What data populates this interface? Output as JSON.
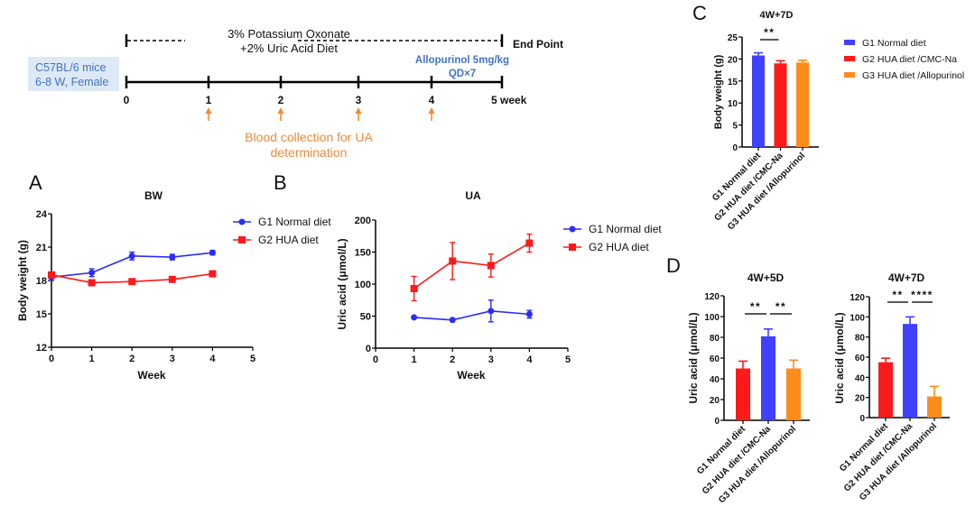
{
  "timeline": {
    "diet_label_line1": "3% Potassium Oxonate",
    "diet_label_line2": "+2% Uric Acid Diet",
    "end_point_label": "End Point",
    "mice_line1": "C57BL/6 mice",
    "mice_line2": "6-8 W, Female",
    "drug_line1": "Allopurinol 5mg/kg",
    "drug_line2": "QD×7",
    "ticks": [
      "0",
      "1",
      "2",
      "3",
      "4",
      "5 week"
    ],
    "blood_weeks": [
      1,
      2,
      3,
      4
    ],
    "blood_line1": "Blood collection for UA",
    "blood_line2": "determination",
    "colors": {
      "box_bg": "#dde9f6",
      "box_text": "#4472c4",
      "drug_text": "#4472c4",
      "arrow": "#f08a3c"
    }
  },
  "chart_data": [
    {
      "id": "A",
      "panel_label": "A",
      "type": "line",
      "title": "BW",
      "xlabel": "Week",
      "ylabel": "Body weight (g)",
      "xlim": [
        0,
        5
      ],
      "ylim": [
        12,
        24
      ],
      "xticks": [
        "0",
        "1",
        "2",
        "3",
        "4",
        "5"
      ],
      "yticks": [
        "12",
        "15",
        "18",
        "21",
        "24"
      ],
      "grid": false,
      "legend": "right",
      "x": [
        0,
        1,
        2,
        3,
        4
      ],
      "series": [
        {
          "name": "G1 Normal diet",
          "color": "#2b2bff",
          "marker": "circle",
          "values": [
            18.3,
            18.7,
            20.2,
            20.1,
            20.5
          ],
          "errors": [
            0.3,
            0.35,
            0.35,
            0.25,
            0.2
          ]
        },
        {
          "name": "G2 HUA diet",
          "color": "#ff1a1a",
          "marker": "square",
          "values": [
            18.5,
            17.8,
            17.9,
            18.1,
            18.6
          ],
          "errors": [
            0.15,
            0.2,
            0.2,
            0.2,
            0.25
          ]
        }
      ]
    },
    {
      "id": "B",
      "panel_label": "B",
      "type": "line",
      "title": "UA",
      "xlabel": "Week",
      "ylabel": "Uric acid (μmol/L)",
      "xlim": [
        0,
        5
      ],
      "ylim": [
        0,
        200
      ],
      "xticks": [
        "0",
        "1",
        "2",
        "3",
        "4",
        "5"
      ],
      "yticks": [
        "0",
        "50",
        "100",
        "150",
        "200"
      ],
      "grid": false,
      "legend": "right",
      "x": [
        1,
        2,
        3,
        4
      ],
      "series": [
        {
          "name": "G1 Normal diet",
          "color": "#2b2bff",
          "marker": "circle",
          "values": [
            48,
            44,
            58,
            53
          ],
          "errors": [
            1,
            1,
            17,
            6
          ]
        },
        {
          "name": "G2 HUA diet",
          "color": "#ff1a1a",
          "marker": "square",
          "values": [
            93,
            136,
            129,
            164
          ],
          "errors": [
            19,
            29,
            18,
            14
          ]
        }
      ]
    },
    {
      "id": "C",
      "panel_label": "C",
      "type": "bar",
      "title": "4W+7D",
      "xlabel": "",
      "ylabel": "Body weight (g)",
      "ylim": [
        0,
        25
      ],
      "yticks": [
        "0",
        "5",
        "10",
        "15",
        "20",
        "25"
      ],
      "categories": [
        "G1 Normal diet",
        "G2 HUA diet /CMC-Na",
        "G3 HUA diet /Allopurinol"
      ],
      "values": [
        20.8,
        19.0,
        19.2
      ],
      "errors": [
        0.6,
        0.6,
        0.5
      ],
      "colors": [
        "#4040ff",
        "#ff1a1a",
        "#ff8c1a"
      ],
      "significance": [
        {
          "from": 0,
          "to": 1,
          "label": "**"
        }
      ],
      "legend": "right",
      "legend_entries": [
        {
          "name": "G1 Normal diet",
          "color": "#4040ff"
        },
        {
          "name": "G2 HUA diet /CMC-Na",
          "color": "#ff1a1a"
        },
        {
          "name": "G3 HUA diet /Allopurinol",
          "color": "#ff8c1a"
        }
      ]
    },
    {
      "id": "D1",
      "panel_label": "D",
      "type": "bar",
      "title": "4W+5D",
      "xlabel": "",
      "ylabel": "Uric acid (μmol/L)",
      "ylim": [
        0,
        120
      ],
      "yticks": [
        "0",
        "20",
        "40",
        "60",
        "80",
        "100",
        "120"
      ],
      "categories": [
        "G1 Normal diet",
        "G2 HUA diet /CMC-Na",
        "G3 HUA diet /Allopurinol"
      ],
      "values": [
        50,
        81,
        50
      ],
      "errors": [
        7,
        7,
        8
      ],
      "colors": [
        "#ff1a1a",
        "#4040ff",
        "#ff8c1a"
      ],
      "significance": [
        {
          "from": 0,
          "to": 1,
          "label": "**"
        },
        {
          "from": 1,
          "to": 2,
          "label": "**"
        }
      ]
    },
    {
      "id": "D2",
      "panel_label": "",
      "type": "bar",
      "title": "4W+7D",
      "xlabel": "",
      "ylabel": "Uric acid (μmol/L)",
      "ylim": [
        0,
        120
      ],
      "yticks": [
        "0",
        "20",
        "40",
        "60",
        "80",
        "100",
        "120"
      ],
      "categories": [
        "G1 Normal diet",
        "G2 HUA diet /CMC-Na",
        "G3 HUA diet /Allopurinol"
      ],
      "values": [
        55,
        93,
        21
      ],
      "errors": [
        4,
        7,
        10
      ],
      "colors": [
        "#ff1a1a",
        "#4040ff",
        "#ff8c1a"
      ],
      "significance": [
        {
          "from": 0,
          "to": 1,
          "label": "**"
        },
        {
          "from": 1,
          "to": 2,
          "label": "****"
        }
      ]
    }
  ]
}
